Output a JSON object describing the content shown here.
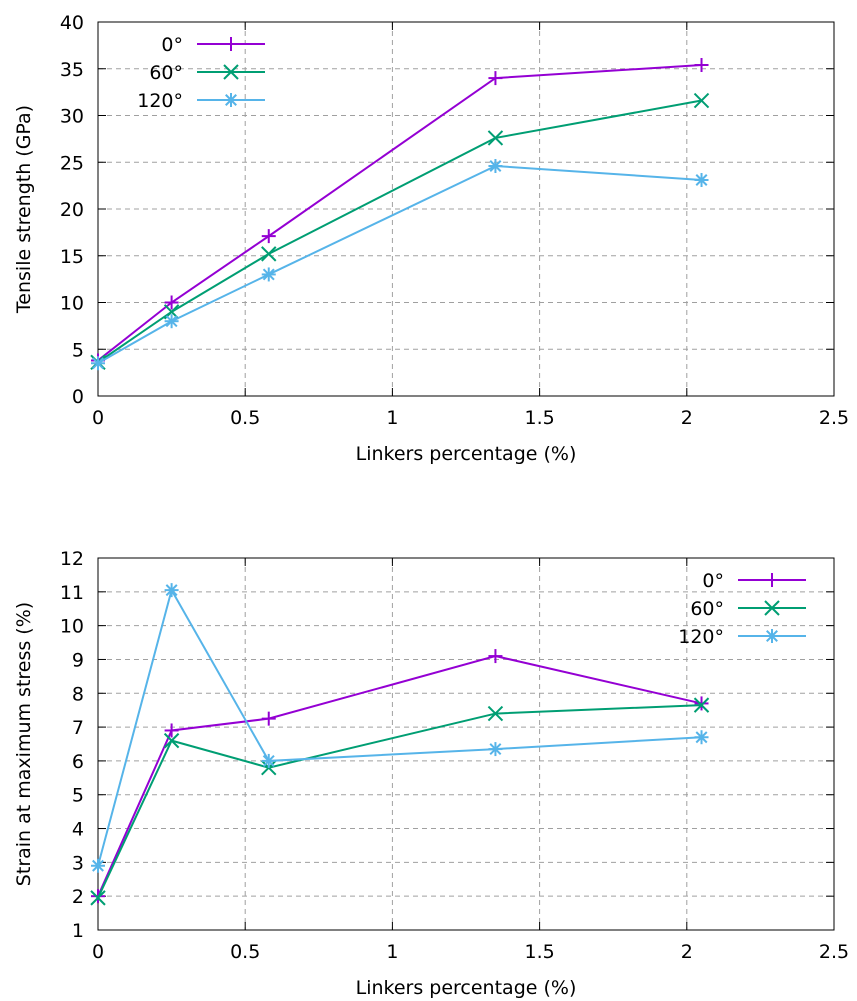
{
  "chart_data": [
    {
      "type": "line",
      "title": "",
      "xlabel": "Linkers percentage (%)",
      "ylabel": "Tensile strength (GPa)",
      "xlim": [
        0,
        2.5
      ],
      "ylim": [
        0,
        40
      ],
      "xticks": [
        0,
        0.5,
        1,
        1.5,
        2,
        2.5
      ],
      "xtick_labels": [
        "0",
        "0.5",
        "1",
        "1.5",
        "2",
        "2.5"
      ],
      "yticks": [
        0,
        5,
        10,
        15,
        20,
        25,
        30,
        35,
        40
      ],
      "ytick_labels": [
        "0",
        "5",
        "10",
        "15",
        "20",
        "25",
        "30",
        "35",
        "40"
      ],
      "grid": true,
      "legend_position": "top-left",
      "x": [
        0,
        0.25,
        0.58,
        1.35,
        2.05
      ],
      "series": [
        {
          "name": "0°",
          "color": "#9400d3",
          "marker": "plus",
          "values": [
            3.8,
            10.0,
            17.1,
            34.0,
            35.4
          ]
        },
        {
          "name": "60°",
          "color": "#009e73",
          "marker": "cross",
          "values": [
            3.6,
            9.0,
            15.2,
            27.6,
            31.6
          ]
        },
        {
          "name": "120°",
          "color": "#56b4e9",
          "marker": "star",
          "values": [
            3.5,
            8.0,
            13.0,
            24.6,
            23.1
          ]
        }
      ]
    },
    {
      "type": "line",
      "title": "",
      "xlabel": "Linkers percentage (%)",
      "ylabel": "Strain at maximum stress (%)",
      "xlim": [
        0,
        2.5
      ],
      "ylim": [
        1,
        12
      ],
      "xticks": [
        0,
        0.5,
        1,
        1.5,
        2,
        2.5
      ],
      "xtick_labels": [
        "0",
        "0.5",
        "1",
        "1.5",
        "2",
        "2.5"
      ],
      "yticks": [
        1,
        2,
        3,
        4,
        5,
        6,
        7,
        8,
        9,
        10,
        11,
        12
      ],
      "ytick_labels": [
        "1",
        "2",
        "3",
        "4",
        "5",
        "6",
        "7",
        "8",
        "9",
        "10",
        "11",
        "12"
      ],
      "grid": true,
      "legend_position": "top-right",
      "x": [
        0,
        0.25,
        0.58,
        1.35,
        2.05
      ],
      "series": [
        {
          "name": "0°",
          "color": "#9400d3",
          "marker": "plus",
          "values": [
            2.0,
            6.9,
            7.25,
            9.1,
            7.7
          ]
        },
        {
          "name": "60°",
          "color": "#009e73",
          "marker": "cross",
          "values": [
            1.95,
            6.6,
            5.8,
            7.4,
            7.65
          ]
        },
        {
          "name": "120°",
          "color": "#56b4e9",
          "marker": "star",
          "values": [
            2.9,
            11.05,
            6.0,
            6.35,
            6.7
          ]
        }
      ]
    }
  ]
}
